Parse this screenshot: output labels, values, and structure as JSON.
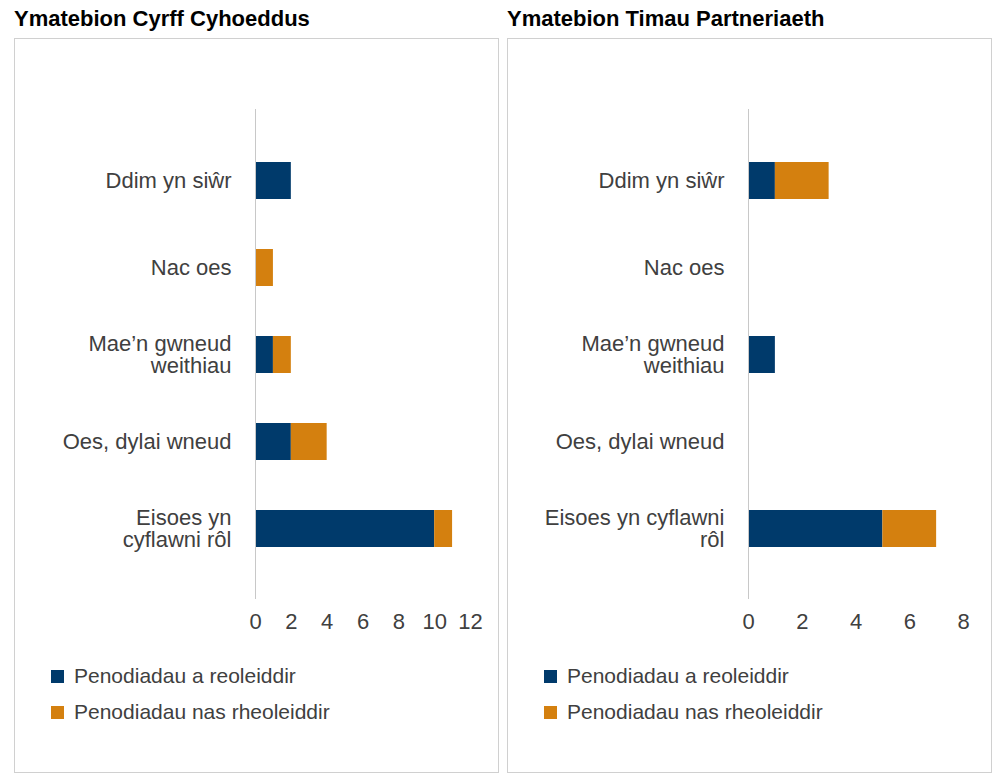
{
  "chart_data": [
    {
      "type": "bar",
      "title": "Ymatebion Cyrff Cyhoeddus",
      "orientation": "horizontal",
      "stacked": true,
      "grid": false,
      "legend": "bottom",
      "categories": [
        "Ddim yn siŵr",
        "Nac oes",
        "Mae’n gwneud\nweithiau",
        "Oes, dylai wneud",
        "Eisoes yn\ncyflawni rôl"
      ],
      "series": [
        {
          "name": "Penodiadau a reoleiddir",
          "color": "#003a6b",
          "values": [
            2,
            0,
            1,
            2,
            10
          ]
        },
        {
          "name": "Penodiadau nas rheoleiddir",
          "color": "#d4800f",
          "values": [
            0,
            1,
            1,
            2,
            1
          ]
        }
      ],
      "xlim": [
        0,
        12
      ],
      "xticks": [
        0,
        2,
        4,
        6,
        8,
        10,
        12
      ]
    },
    {
      "type": "bar",
      "title": "Ymatebion Timau Partneriaeth",
      "orientation": "horizontal",
      "stacked": true,
      "grid": false,
      "legend": "bottom",
      "categories": [
        "Ddim yn siŵr",
        "Nac oes",
        "Mae’n gwneud\nweithiau",
        "Oes, dylai wneud",
        "Eisoes yn cyflawni\nrôl"
      ],
      "series": [
        {
          "name": "Penodiadau a reoleiddir",
          "color": "#003a6b",
          "values": [
            1,
            0,
            1,
            0,
            5
          ]
        },
        {
          "name": "Penodiadau nas rheoleiddir",
          "color": "#d4800f",
          "values": [
            2,
            0,
            0,
            0,
            2
          ]
        }
      ],
      "xlim": [
        0,
        8
      ],
      "xticks": [
        0,
        2,
        4,
        6,
        8
      ]
    }
  ]
}
